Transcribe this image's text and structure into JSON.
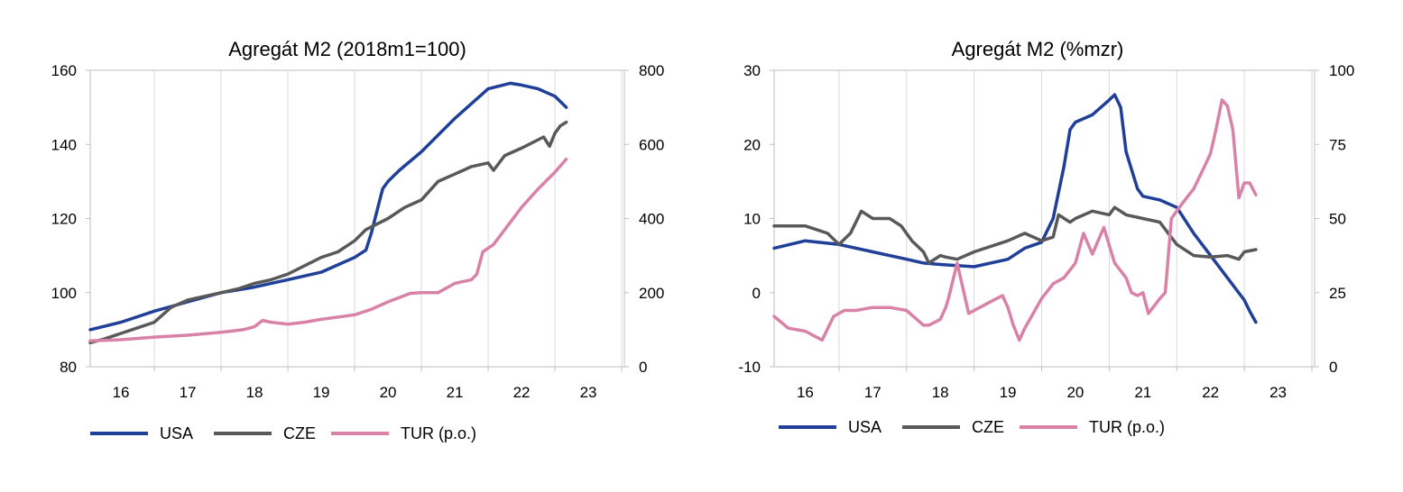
{
  "colors": {
    "USA": "#1f3f99",
    "CZE": "#595959",
    "TUR": "#d982a8"
  },
  "chart_data": [
    {
      "type": "line",
      "title": "Agregát M2 (2018m1=100)",
      "x_ticks": [
        "16",
        "17",
        "18",
        "19",
        "20",
        "21",
        "22",
        "23"
      ],
      "x_range": [
        2015.54,
        2023.54
      ],
      "ylim": [
        80,
        160
      ],
      "y_ticks": [
        "80",
        "100",
        "120",
        "140",
        "160"
      ],
      "y2lim": [
        0,
        800
      ],
      "y2_ticks": [
        "0",
        "200",
        "400",
        "600",
        "800"
      ],
      "grid": "vertical",
      "legend_position": "bottom",
      "series": [
        {
          "name": "USA",
          "axis": "left",
          "color_key": "USA",
          "x": [
            2015.54,
            2016.0,
            2016.5,
            2017.0,
            2017.5,
            2018.0,
            2018.5,
            2019.0,
            2019.5,
            2019.67,
            2019.75,
            2019.92,
            2020.0,
            2020.17,
            2020.5,
            2021.0,
            2021.5,
            2021.83,
            2022.0,
            2022.25,
            2022.5,
            2022.67
          ],
          "y": [
            90,
            92,
            95,
            97.5,
            100,
            101.5,
            103.5,
            105.5,
            109.5,
            111.5,
            116,
            128,
            130,
            133,
            138,
            147,
            155,
            156.5,
            156,
            155,
            153,
            150
          ]
        },
        {
          "name": "CZE",
          "axis": "left",
          "color_key": "CZE",
          "x": [
            2015.54,
            2015.75,
            2016.0,
            2016.33,
            2016.5,
            2016.75,
            2017.0,
            2017.5,
            2017.75,
            2018.0,
            2018.25,
            2018.5,
            2019.0,
            2019.25,
            2019.5,
            2019.67,
            2020.0,
            2020.25,
            2020.5,
            2020.75,
            2021.0,
            2021.25,
            2021.5,
            2021.58,
            2021.75,
            2022.0,
            2022.33,
            2022.42,
            2022.5,
            2022.58,
            2022.67
          ],
          "y": [
            86.5,
            87.5,
            89,
            91,
            92,
            96,
            98,
            100,
            101,
            102.5,
            103.5,
            105,
            109.5,
            111,
            114,
            117,
            120,
            123,
            125,
            130,
            132,
            134,
            135,
            133,
            137,
            139,
            142,
            139.5,
            143,
            145,
            146
          ]
        },
        {
          "name": "TUR (p.o.)",
          "axis": "right",
          "color_key": "TUR",
          "x": [
            2015.54,
            2016.0,
            2016.5,
            2017.0,
            2017.5,
            2017.83,
            2018.0,
            2018.12,
            2018.25,
            2018.5,
            2018.75,
            2019.0,
            2019.5,
            2019.75,
            2020.0,
            2020.33,
            2020.5,
            2020.75,
            2021.0,
            2021.25,
            2021.33,
            2021.42,
            2021.58,
            2021.75,
            2022.0,
            2022.25,
            2022.5,
            2022.67
          ],
          "y": [
            70,
            73,
            80,
            85,
            93,
            100,
            108,
            125,
            120,
            115,
            120,
            128,
            140,
            155,
            175,
            198,
            200,
            200,
            225,
            235,
            250,
            310,
            330,
            370,
            430,
            480,
            525,
            560
          ]
        }
      ]
    },
    {
      "type": "line",
      "title": "Agregát M2 (%mzr)",
      "x_ticks": [
        "16",
        "17",
        "18",
        "19",
        "20",
        "21",
        "22",
        "23"
      ],
      "x_range": [
        2015.54,
        2023.54
      ],
      "ylim": [
        -10,
        30
      ],
      "y_ticks": [
        "-10",
        "0",
        "10",
        "20",
        "30"
      ],
      "y2lim": [
        0,
        100
      ],
      "y2_ticks": [
        "0",
        "25",
        "50",
        "75",
        "100"
      ],
      "grid": "vertical",
      "legend_position": "bottom",
      "series": [
        {
          "name": "USA",
          "axis": "left",
          "color_key": "USA",
          "x": [
            2015.54,
            2016.0,
            2016.5,
            2017.0,
            2017.5,
            2017.75,
            2018.0,
            2018.5,
            2019.0,
            2019.25,
            2019.5,
            2019.67,
            2019.83,
            2019.92,
            2020.0,
            2020.25,
            2020.5,
            2020.58,
            2020.67,
            2020.75,
            2020.92,
            2021.0,
            2021.25,
            2021.5,
            2021.75,
            2022.0,
            2022.25,
            2022.5,
            2022.58,
            2022.67
          ],
          "y": [
            6,
            7,
            6.5,
            5.5,
            4.5,
            4,
            3.8,
            3.5,
            4.5,
            6,
            6.8,
            10,
            17,
            22,
            23,
            24,
            26,
            26.7,
            25,
            19,
            14,
            13,
            12.5,
            11.5,
            8,
            5,
            2,
            -1,
            -2.5,
            -4
          ]
        },
        {
          "name": "CZE",
          "axis": "left",
          "color_key": "CZE",
          "x": [
            2015.54,
            2016.0,
            2016.33,
            2016.5,
            2016.67,
            2016.75,
            2016.83,
            2017.0,
            2017.25,
            2017.42,
            2017.58,
            2017.75,
            2017.83,
            2018.0,
            2018.08,
            2018.25,
            2018.5,
            2019.0,
            2019.25,
            2019.5,
            2019.67,
            2019.75,
            2019.92,
            2020.0,
            2020.25,
            2020.5,
            2020.58,
            2020.75,
            2021.0,
            2021.25,
            2021.5,
            2021.75,
            2022.0,
            2022.25,
            2022.42,
            2022.5,
            2022.67
          ],
          "y": [
            9,
            9,
            8,
            6.5,
            8,
            9.5,
            11,
            10,
            10,
            9,
            7,
            5.5,
            4,
            5,
            4.8,
            4.5,
            5.5,
            7,
            8,
            7,
            7.5,
            10.5,
            9.5,
            10,
            11,
            10.5,
            11.5,
            10.5,
            10,
            9.5,
            6.5,
            5,
            4.8,
            5,
            4.5,
            5.5,
            5.8
          ]
        },
        {
          "name": "TUR (p.o.)",
          "axis": "right",
          "color_key": "TUR",
          "x": [
            2015.54,
            2015.75,
            2016.0,
            2016.25,
            2016.42,
            2016.58,
            2016.75,
            2017.0,
            2017.25,
            2017.5,
            2017.75,
            2017.83,
            2018.0,
            2018.08,
            2018.12,
            2018.25,
            2018.42,
            2018.75,
            2018.92,
            2019.0,
            2019.08,
            2019.17,
            2019.25,
            2019.5,
            2019.67,
            2019.83,
            2020.0,
            2020.12,
            2020.25,
            2020.42,
            2020.58,
            2020.75,
            2020.83,
            2020.92,
            2021.0,
            2021.08,
            2021.25,
            2021.33,
            2021.42,
            2021.58,
            2021.75,
            2021.92,
            2022.0,
            2022.08,
            2022.17,
            2022.25,
            2022.33,
            2022.42,
            2022.5,
            2022.58,
            2022.67
          ],
          "y": [
            17,
            13,
            12,
            9,
            17,
            19,
            19,
            20,
            20,
            19,
            14,
            14,
            16,
            20,
            23,
            35,
            18,
            22,
            24,
            20,
            14,
            9,
            13,
            23,
            28,
            30,
            35,
            45,
            38,
            47,
            35,
            30,
            25,
            24,
            25,
            18,
            23,
            25,
            50,
            55,
            60,
            68,
            72,
            80,
            90,
            88,
            80,
            57,
            62,
            62,
            58
          ]
        }
      ]
    }
  ]
}
